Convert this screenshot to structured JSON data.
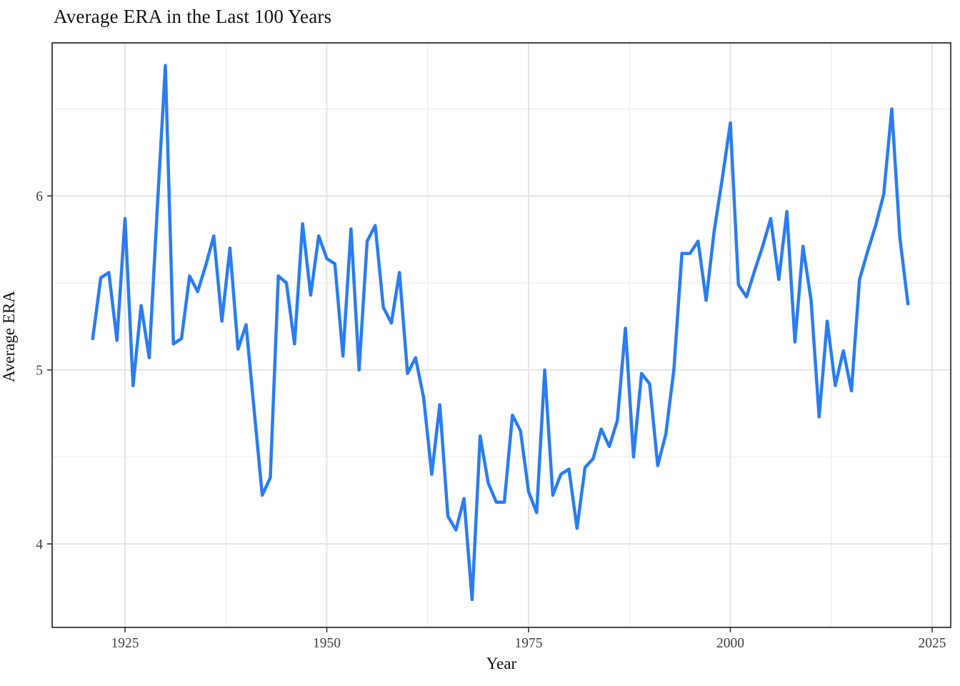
{
  "chart_data": {
    "type": "line",
    "title": "Average ERA in the Last 100 Years",
    "xlabel": "Year",
    "ylabel": "Average ERA",
    "series_color": "#2A7CF2",
    "background": "#ffffff",
    "panel_border_color": "#1a1a1a",
    "major_grid_color": "#e3e3e3",
    "minor_grid_color": "#f0f0f0",
    "grid": true,
    "legend": "none",
    "xlim": [
      1915.97,
      2027.3
    ],
    "ylim": [
      3.52,
      6.88
    ],
    "x_ticks": [
      1925,
      1950,
      1975,
      2000,
      2025
    ],
    "x_tick_labels": [
      "1925",
      "1950",
      "1975",
      "2000",
      "2025"
    ],
    "x_minor_ticks": [
      1937.5,
      1962.5,
      1987.5,
      2012.5
    ],
    "y_ticks": [
      4,
      5,
      6
    ],
    "y_tick_labels": [
      "4",
      "5",
      "6"
    ],
    "y_minor_ticks": [
      4.5,
      5.5,
      6.5
    ],
    "x": [
      1921,
      1922,
      1923,
      1924,
      1925,
      1926,
      1927,
      1928,
      1929,
      1930,
      1931,
      1932,
      1933,
      1934,
      1935,
      1936,
      1937,
      1938,
      1939,
      1940,
      1941,
      1942,
      1943,
      1944,
      1945,
      1946,
      1947,
      1948,
      1949,
      1950,
      1951,
      1952,
      1953,
      1954,
      1955,
      1956,
      1957,
      1958,
      1959,
      1960,
      1961,
      1962,
      1963,
      1964,
      1965,
      1966,
      1967,
      1968,
      1969,
      1970,
      1971,
      1972,
      1973,
      1974,
      1975,
      1976,
      1977,
      1978,
      1979,
      1980,
      1981,
      1982,
      1983,
      1984,
      1985,
      1986,
      1987,
      1988,
      1989,
      1990,
      1991,
      1992,
      1993,
      1994,
      1995,
      1996,
      1997,
      1998,
      1999,
      2000,
      2001,
      2002,
      2003,
      2004,
      2005,
      2006,
      2007,
      2008,
      2009,
      2010,
      2011,
      2012,
      2013,
      2014,
      2015,
      2016,
      2017,
      2018,
      2019,
      2020,
      2021,
      2022
    ],
    "values": [
      5.18,
      5.53,
      5.56,
      5.17,
      5.87,
      4.91,
      5.37,
      5.07,
      5.93,
      6.75,
      5.15,
      5.18,
      5.54,
      5.45,
      5.6,
      5.77,
      5.28,
      5.7,
      5.12,
      5.26,
      4.77,
      4.28,
      4.38,
      5.54,
      5.5,
      5.15,
      5.84,
      5.43,
      5.77,
      5.64,
      5.61,
      5.08,
      5.81,
      5.0,
      5.74,
      5.83,
      5.36,
      5.27,
      5.56,
      4.98,
      5.07,
      4.84,
      4.4,
      4.8,
      4.16,
      4.08,
      4.26,
      3.68,
      4.62,
      4.35,
      4.24,
      4.24,
      4.74,
      4.65,
      4.3,
      4.18,
      5.0,
      4.28,
      4.4,
      4.43,
      4.09,
      4.44,
      4.49,
      4.66,
      4.56,
      4.71,
      5.24,
      4.5,
      4.98,
      4.92,
      4.45,
      4.63,
      5.0,
      5.67,
      5.67,
      5.74,
      5.4,
      5.8,
      6.1,
      6.42,
      5.49,
      5.42,
      5.57,
      5.71,
      5.87,
      5.52,
      5.91,
      5.16,
      5.71,
      5.4,
      4.73,
      5.28,
      4.91,
      5.11,
      4.88,
      5.52,
      5.68,
      5.83,
      6.01,
      6.5,
      5.76,
      5.38
    ]
  }
}
